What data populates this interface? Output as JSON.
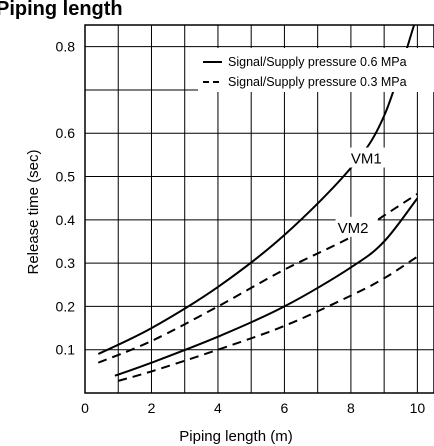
{
  "chart_data": {
    "type": "line",
    "title": "Piping length",
    "xlabel": "Piping length (m)",
    "ylabel": "Release time (sec)",
    "xlim": [
      0,
      10.5
    ],
    "ylim": [
      0,
      0.85
    ],
    "xticks": [
      0,
      2,
      4,
      6,
      8,
      10
    ],
    "yticks": [
      0.1,
      0.2,
      0.3,
      0.4,
      0.5,
      0.6,
      0.8
    ],
    "grid": true,
    "legend_position": "top-right",
    "legend": [
      {
        "label": "Signal/Supply pressure 0.6 MPa",
        "style": "solid"
      },
      {
        "label": "Signal/Supply pressure 0.3 MPa",
        "style": "dashed"
      }
    ],
    "annotations": [
      {
        "text": "VM1",
        "x": 8.0,
        "y": 0.53
      },
      {
        "text": "VM2",
        "x": 7.6,
        "y": 0.37
      }
    ],
    "series": [
      {
        "group": "VM1",
        "style": "solid",
        "x": [
          0.4,
          2,
          4,
          6,
          8,
          9,
          9.9
        ],
        "y": [
          0.09,
          0.15,
          0.245,
          0.365,
          0.52,
          0.64,
          0.85
        ]
      },
      {
        "group": "VM1",
        "style": "dashed",
        "x": [
          0.4,
          2,
          4,
          6,
          8,
          9,
          10
        ],
        "y": [
          0.07,
          0.12,
          0.2,
          0.285,
          0.36,
          0.41,
          0.46
        ]
      },
      {
        "group": "VM2",
        "style": "solid",
        "x": [
          0.9,
          2,
          4,
          6,
          8,
          9,
          10
        ],
        "y": [
          0.04,
          0.07,
          0.13,
          0.2,
          0.29,
          0.35,
          0.45
        ]
      },
      {
        "group": "VM2",
        "style": "dashed",
        "x": [
          1,
          2,
          4,
          6,
          8,
          9,
          10
        ],
        "y": [
          0.028,
          0.05,
          0.1,
          0.155,
          0.225,
          0.265,
          0.315
        ]
      }
    ]
  }
}
